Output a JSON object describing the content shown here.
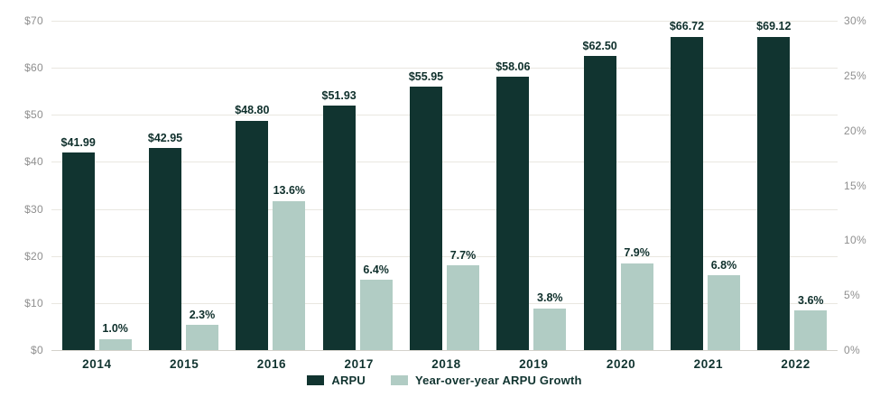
{
  "chart_data": {
    "type": "bar",
    "title": "",
    "categories": [
      "2014",
      "2015",
      "2016",
      "2017",
      "2018",
      "2019",
      "2020",
      "2021",
      "2022"
    ],
    "series": [
      {
        "name": "ARPU",
        "axis": "left",
        "color": "#113430",
        "values": [
          41.99,
          42.95,
          48.8,
          51.93,
          55.95,
          58.06,
          62.5,
          66.72,
          69.12
        ],
        "labels": [
          "$41.99",
          "$42.95",
          "$48.80",
          "$51.93",
          "$55.95",
          "$58.06",
          "$62.50",
          "$66.72",
          "$69.12"
        ]
      },
      {
        "name": "Year-over-year ARPU Growth",
        "axis": "right",
        "color": "#b1ccc4",
        "values": [
          1.0,
          2.3,
          13.6,
          6.4,
          7.7,
          3.8,
          7.9,
          6.8,
          3.6
        ],
        "labels": [
          "1.0%",
          "2.3%",
          "13.6%",
          "6.4%",
          "7.7%",
          "3.8%",
          "7.9%",
          "6.8%",
          "3.6%"
        ]
      }
    ],
    "left_axis": {
      "min": 0,
      "max": 70,
      "ticks": [
        "$70",
        "$60",
        "$50",
        "$40",
        "$30",
        "$20",
        "$10",
        "$0"
      ]
    },
    "right_axis": {
      "min": 0,
      "max": 30,
      "ticks": [
        "30%",
        "25%",
        "20%",
        "15%",
        "10%",
        "5%",
        "0%"
      ]
    },
    "grid": "horizontal, aligned to left (dollar) axis",
    "legend_position": "bottom-center",
    "legend": [
      {
        "label": "ARPU",
        "color": "#113430"
      },
      {
        "label": "Year-over-year ARPU Growth",
        "color": "#b1ccc4"
      }
    ]
  },
  "colors": {
    "background": "#ffffff",
    "gridline": "#e9e7e0",
    "axis_line": "#d4d2cb",
    "tick_text": "#8f8f8f",
    "category_text": "#113430",
    "value_label_text": "#0e2f2b"
  }
}
